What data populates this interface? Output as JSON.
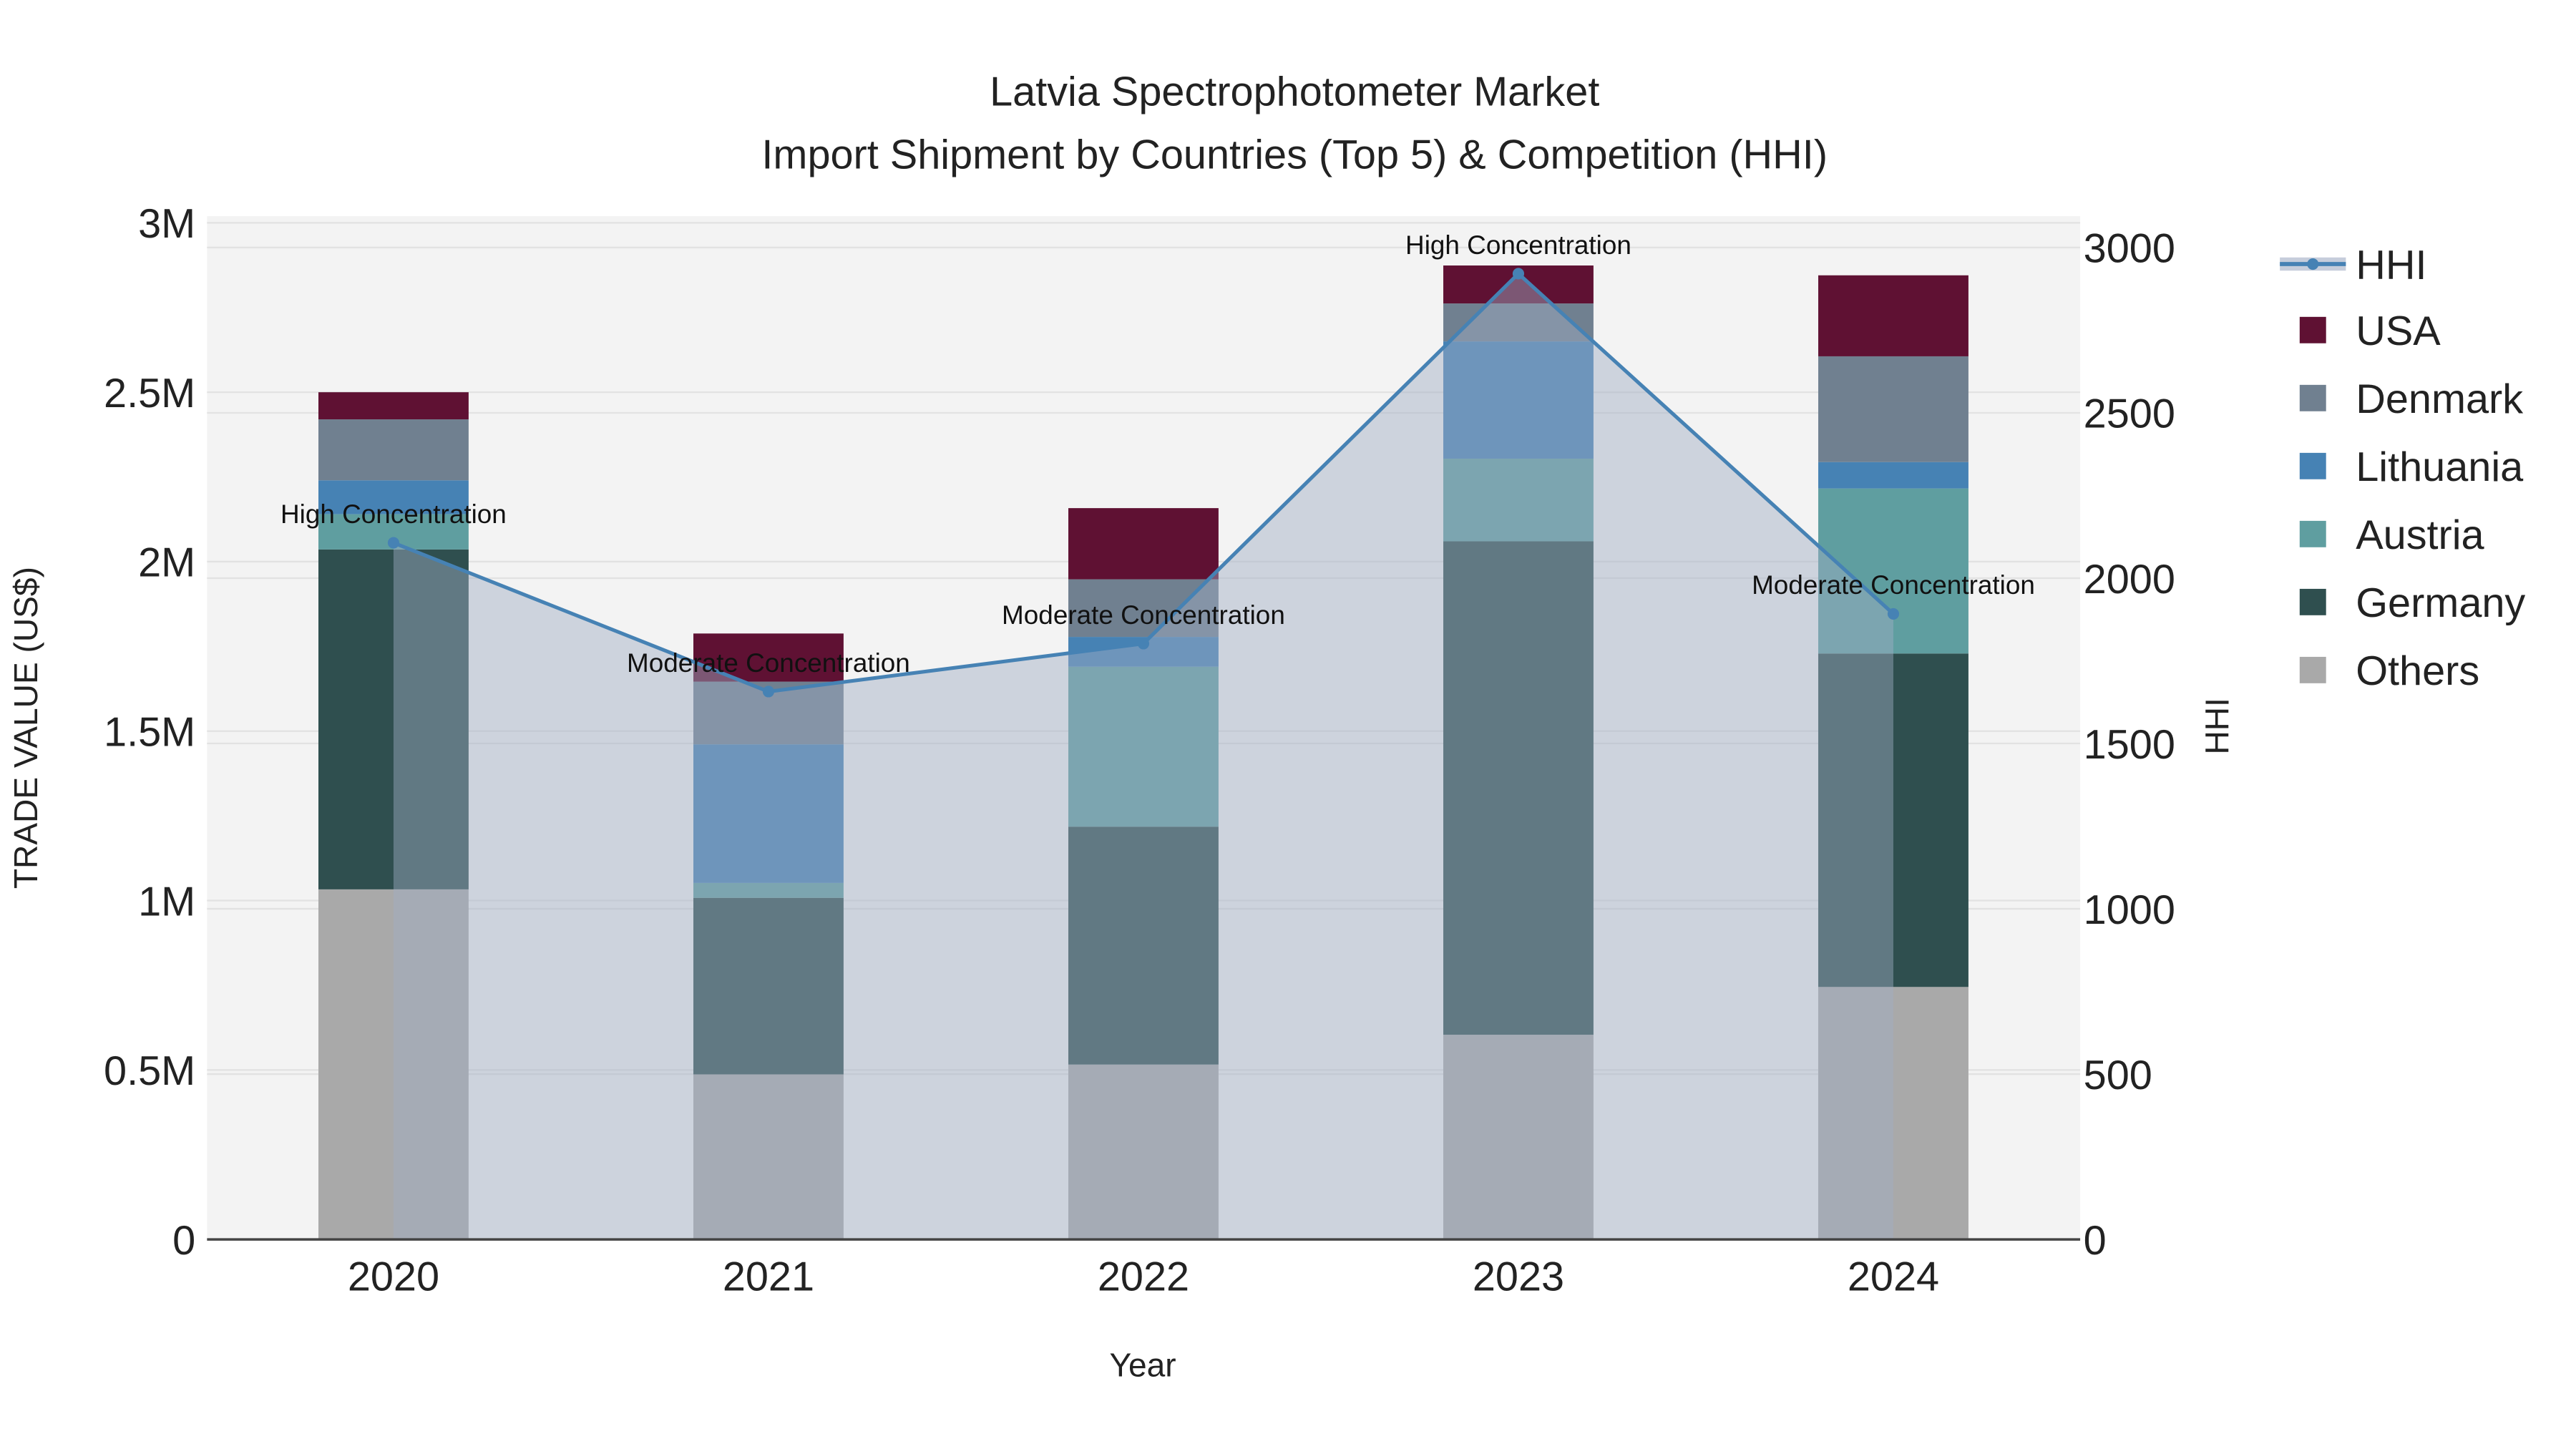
{
  "chart_data": {
    "type": "bar",
    "stacked": true,
    "title": "Latvia Spectrophotometer Market",
    "subtitle": "Import Shipment by Countries (Top 5) & Competition (HHI)",
    "xlabel": "Year",
    "ylabel": "TRADE VALUE (US$)",
    "y2label": "HHI",
    "categories": [
      "2020",
      "2021",
      "2022",
      "2023",
      "2024"
    ],
    "ylim": [
      0,
      3000000
    ],
    "y_ticks": [
      0,
      500000,
      1000000,
      1500000,
      2000000,
      2500000,
      3000000
    ],
    "y_tick_labels": [
      "0",
      "0.5M",
      "1M",
      "1.5M",
      "2M",
      "2.5M",
      "3M"
    ],
    "y2lim": [
      0,
      3090
    ],
    "y2_ticks": [
      0,
      500,
      1000,
      1500,
      2000,
      2500,
      3000
    ],
    "y2_tick_labels": [
      "0",
      "500",
      "1000",
      "1500",
      "2000",
      "2500",
      "3000"
    ],
    "grid": true,
    "legend_position": "right",
    "series": [
      {
        "name": "Others",
        "color": "#a9a9a9",
        "values": [
          1033000,
          487000,
          516000,
          604000,
          745000
        ]
      },
      {
        "name": "Germany",
        "color": "#2f4f4f",
        "values": [
          1003000,
          521000,
          702000,
          1456000,
          984000
        ]
      },
      {
        "name": "Austria",
        "color": "#5f9ea0",
        "values": [
          104000,
          44000,
          472000,
          244000,
          487000
        ]
      },
      {
        "name": "Lithuania",
        "color": "#4682b4",
        "values": [
          100000,
          409000,
          88000,
          346000,
          78000
        ]
      },
      {
        "name": "Denmark",
        "color": "#708090",
        "values": [
          180000,
          185000,
          170000,
          112000,
          312000
        ]
      },
      {
        "name": "USA",
        "color": "#5f1133",
        "values": [
          80000,
          142000,
          210000,
          112000,
          239000
        ]
      }
    ],
    "line_series": {
      "name": "HHI",
      "axis": "y2",
      "color": "#4682b4",
      "values": [
        2107,
        1657,
        1802,
        2921,
        1892
      ],
      "annotations": [
        "High Concentration",
        "Moderate Concentration",
        "Moderate Concentration",
        "High Concentration",
        "Moderate Concentration"
      ]
    },
    "legend_order": [
      "HHI",
      "USA",
      "Denmark",
      "Lithuania",
      "Austria",
      "Germany",
      "Others"
    ]
  }
}
